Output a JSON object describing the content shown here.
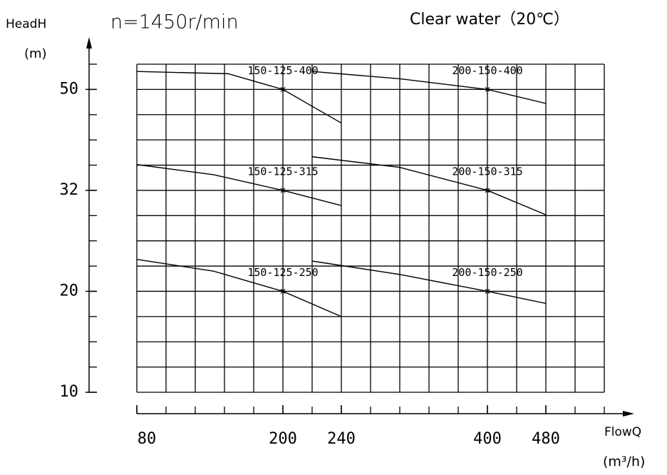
{
  "chart_data": {
    "type": "line",
    "title": "n=1450r/min",
    "subtitle": "Clear water（20℃）",
    "y_label": "HeadH",
    "y_unit": "(m)",
    "x_label": "FlowQ",
    "x_unit": "(m³/h)",
    "xlim": [
      80,
      560
    ],
    "xticks": [
      80,
      200,
      240,
      400,
      480
    ],
    "ylim": [
      10,
      54.5
    ],
    "yticks": [
      10,
      20,
      32,
      50
    ],
    "grid": true,
    "series": [
      {
        "name": "150-125-400",
        "color": "#000000",
        "x": [
          80,
          155,
          200,
          240
        ],
        "values": [
          53.2,
          52.8,
          50,
          44
        ]
      },
      {
        "name": "200-150-400",
        "color": "#000000",
        "x": [
          220,
          304,
          400,
          480
        ],
        "values": [
          53.2,
          51.9,
          50,
          47.5
        ]
      },
      {
        "name": "150-125-315",
        "color": "#000000",
        "x": [
          80,
          143,
          200,
          240
        ],
        "values": [
          36.6,
          34.8,
          32,
          30.2
        ]
      },
      {
        "name": "200-150-315",
        "color": "#000000",
        "x": [
          220,
          304,
          400,
          480
        ],
        "values": [
          38,
          36.1,
          32,
          29.1
        ]
      },
      {
        "name": "150-125-250",
        "color": "#000000",
        "x": [
          80,
          143,
          200,
          240
        ],
        "values": [
          23.8,
          22.4,
          20,
          17.5
        ]
      },
      {
        "name": "200-150-250",
        "color": "#000000",
        "x": [
          220,
          304,
          400,
          480
        ],
        "values": [
          23.6,
          22,
          20,
          18.8
        ]
      }
    ],
    "rated_points": {
      "x": [
        200,
        400,
        200,
        400,
        200,
        400
      ],
      "y": [
        50,
        50,
        32,
        32,
        20,
        20
      ]
    }
  }
}
